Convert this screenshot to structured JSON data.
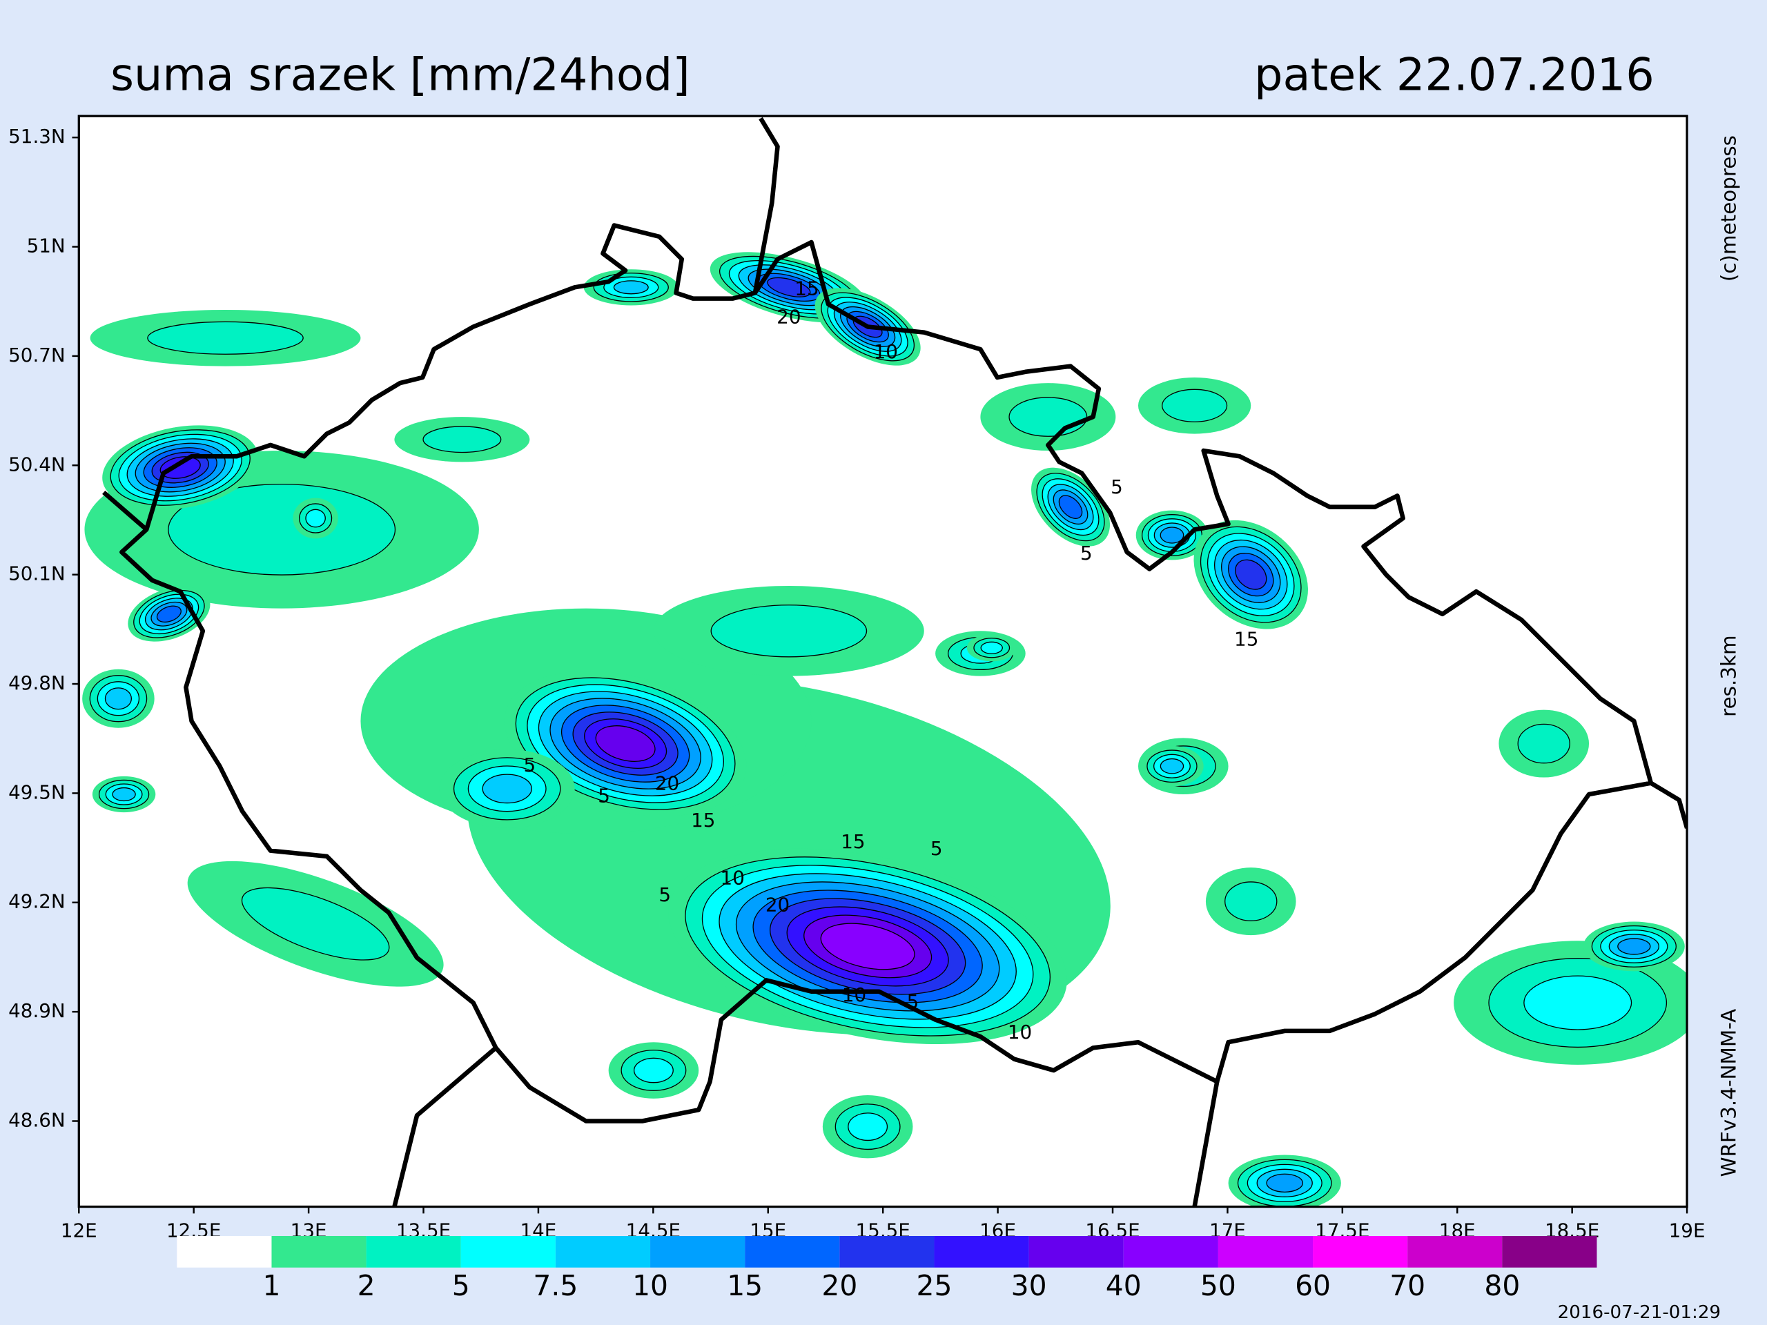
{
  "header": {
    "title": "suma srazek [mm/24hod]",
    "date": "patek 22.07.2016"
  },
  "map": {
    "lat_labels": [
      "51.3N",
      "51N",
      "50.7N",
      "50.4N",
      "50.1N",
      "49.8N",
      "49.5N",
      "49.2N",
      "48.9N",
      "48.6N"
    ],
    "lon_labels": [
      "12E",
      "12.5E",
      "13E",
      "13.5E",
      "14E",
      "14.5E",
      "15E",
      "15.5E",
      "16E",
      "16.5E",
      "17E",
      "17.5E",
      "18E",
      "18.5E",
      "19E"
    ],
    "contour_labels": [
      "15",
      "20",
      "10",
      "5",
      "5",
      "20",
      "15",
      "5",
      "15",
      "10",
      "5",
      "20",
      "5",
      "10",
      "10",
      "5",
      "15",
      "5"
    ]
  },
  "legend": {
    "labels": [
      "1",
      "2",
      "5",
      "7.5",
      "10",
      "15",
      "20",
      "25",
      "30",
      "40",
      "50",
      "60",
      "70",
      "80"
    ],
    "colors": [
      "#ffffff",
      "#33e88f",
      "#00f2c2",
      "#00ffff",
      "#00ccff",
      "#00a0ff",
      "#0066ff",
      "#2233ee",
      "#3311ff",
      "#6600ee",
      "#8800ff",
      "#cc00ff",
      "#ff00ff",
      "#cc00cc",
      "#880088"
    ]
  },
  "side": {
    "copyright": "(c)meteopress",
    "resolution": "res.3km",
    "model": "WRFv3.4-NMM-A"
  },
  "timestamp": "2016-07-21-01:29"
}
